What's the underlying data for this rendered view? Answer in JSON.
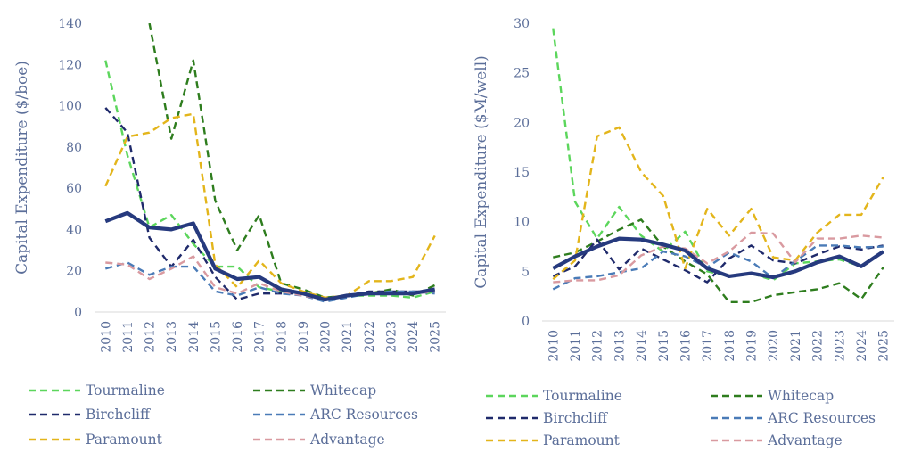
{
  "chart_data": [
    {
      "type": "line",
      "ylabel": "Capital Expenditure ($/boe)",
      "ylim": [
        0,
        140
      ],
      "yticks": [
        "0",
        "20",
        "40",
        "60",
        "80",
        "100",
        "120",
        "140"
      ],
      "categories": [
        "2010",
        "2011",
        "2012",
        "2013",
        "2014",
        "2015",
        "2016",
        "2017",
        "2018",
        "2019",
        "2020",
        "2021",
        "2022",
        "2023",
        "2024",
        "2025"
      ],
      "series": [
        {
          "name": "Tourmaline",
          "color": "#5cd65c",
          "style": "dashed",
          "values": [
            122,
            76,
            41,
            47,
            33,
            22,
            22,
            12,
            10,
            9,
            6,
            8,
            8,
            8,
            7,
            10
          ]
        },
        {
          "name": "Whitecap",
          "color": "#2e7d1e",
          "style": "dashed",
          "values": [
            null,
            null,
            140,
            84,
            122,
            54,
            30,
            47,
            14,
            11,
            7,
            8,
            9,
            11,
            8,
            13
          ]
        },
        {
          "name": "Birchcliff",
          "color": "#1f2a6b",
          "style": "dashed",
          "values": [
            99,
            87,
            36,
            22,
            35,
            17,
            6,
            9,
            9,
            9,
            6,
            8,
            10,
            10,
            10,
            10
          ]
        },
        {
          "name": "ARC Resources",
          "color": "#4a7bb7",
          "style": "dashed",
          "values": [
            21,
            24,
            18,
            22,
            22,
            10,
            8,
            12,
            9,
            8,
            5,
            7,
            9,
            10,
            10,
            9
          ]
        },
        {
          "name": "Paramount",
          "color": "#e3b51b",
          "style": "dashed",
          "values": [
            61,
            85,
            87,
            94,
            96,
            23,
            12,
            25,
            14,
            10,
            7,
            8,
            15,
            15,
            17,
            37
          ]
        },
        {
          "name": "Advantage",
          "color": "#d99aa0",
          "style": "dashed",
          "values": [
            24,
            23,
            16,
            21,
            27,
            12,
            9,
            14,
            10,
            8,
            6,
            8,
            9,
            9,
            9,
            10
          ]
        },
        {
          "name": "",
          "color": "#263a7e",
          "style": "solid",
          "values": [
            44,
            48,
            41,
            40,
            43,
            21,
            16,
            17,
            11,
            9,
            6,
            8,
            9,
            9,
            9,
            11
          ]
        }
      ],
      "legend": [
        "Tourmaline",
        "Whitecap",
        "Birchcliff",
        "ARC Resources",
        "Paramount",
        "Advantage"
      ]
    },
    {
      "type": "line",
      "ylabel": "Capital Expenditure ($M/well)",
      "ylim": [
        0,
        30
      ],
      "yticks": [
        "0",
        "5",
        "10",
        "15",
        "20",
        "25",
        "30"
      ],
      "categories": [
        "2010",
        "2011",
        "2012",
        "2013",
        "2014",
        "2015",
        "2016",
        "2017",
        "2018",
        "2019",
        "2020",
        "2021",
        "2022",
        "2023",
        "2024",
        "2025"
      ],
      "series": [
        {
          "name": "Tourmaline",
          "color": "#5cd65c",
          "style": "dashed",
          "values": [
            29.5,
            12,
            8.3,
            11.5,
            8.6,
            7,
            9,
            5,
            4.5,
            4.8,
            4.1,
            5.8,
            6,
            6.2,
            5.5,
            7
          ]
        },
        {
          "name": "Whitecap",
          "color": "#2e7d1e",
          "style": "dashed",
          "values": [
            6.4,
            6.9,
            8,
            9.2,
            10.2,
            7.5,
            6,
            4.7,
            1.9,
            1.9,
            2.6,
            2.9,
            3.2,
            3.8,
            2.2,
            5.4
          ]
        },
        {
          "name": "Birchcliff",
          "color": "#1f2a6b",
          "style": "dashed",
          "values": [
            4.5,
            5.5,
            8.2,
            5.2,
            7.3,
            6.2,
            5.1,
            3.9,
            6.3,
            7.6,
            6.1,
            5.8,
            6.7,
            7.5,
            7.2,
            7.6
          ]
        },
        {
          "name": "ARC Resources",
          "color": "#4a7bb7",
          "style": "dashed",
          "values": [
            3.2,
            4.3,
            4.5,
            4.9,
            5.3,
            7,
            6.5,
            5.4,
            6.9,
            6,
            4.3,
            6,
            7.6,
            7.6,
            7.4,
            7.5
          ]
        },
        {
          "name": "Paramount",
          "color": "#e3b51b",
          "style": "dashed",
          "values": [
            4.2,
            6.1,
            18.6,
            19.5,
            15,
            12.6,
            5.3,
            11.3,
            8.6,
            11.3,
            6.4,
            6.1,
            8.9,
            10.7,
            10.7,
            14.5
          ]
        },
        {
          "name": "Advantage",
          "color": "#d99aa0",
          "style": "dashed",
          "values": [
            3.9,
            4.1,
            4.1,
            4.6,
            6.6,
            7.5,
            7.3,
            5.8,
            7,
            8.9,
            8.8,
            5.9,
            8.3,
            8.3,
            8.6,
            8.4
          ]
        },
        {
          "name": "",
          "color": "#263a7e",
          "style": "solid",
          "values": [
            5.3,
            6.5,
            7.5,
            8.3,
            8.2,
            7.7,
            7.1,
            5.3,
            4.5,
            4.8,
            4.4,
            5,
            5.9,
            6.5,
            5.5,
            7
          ]
        }
      ],
      "legend": [
        "Tourmaline",
        "Whitecap",
        "Birchcliff",
        "ARC Resources",
        "Paramount",
        "Advantage"
      ]
    }
  ]
}
